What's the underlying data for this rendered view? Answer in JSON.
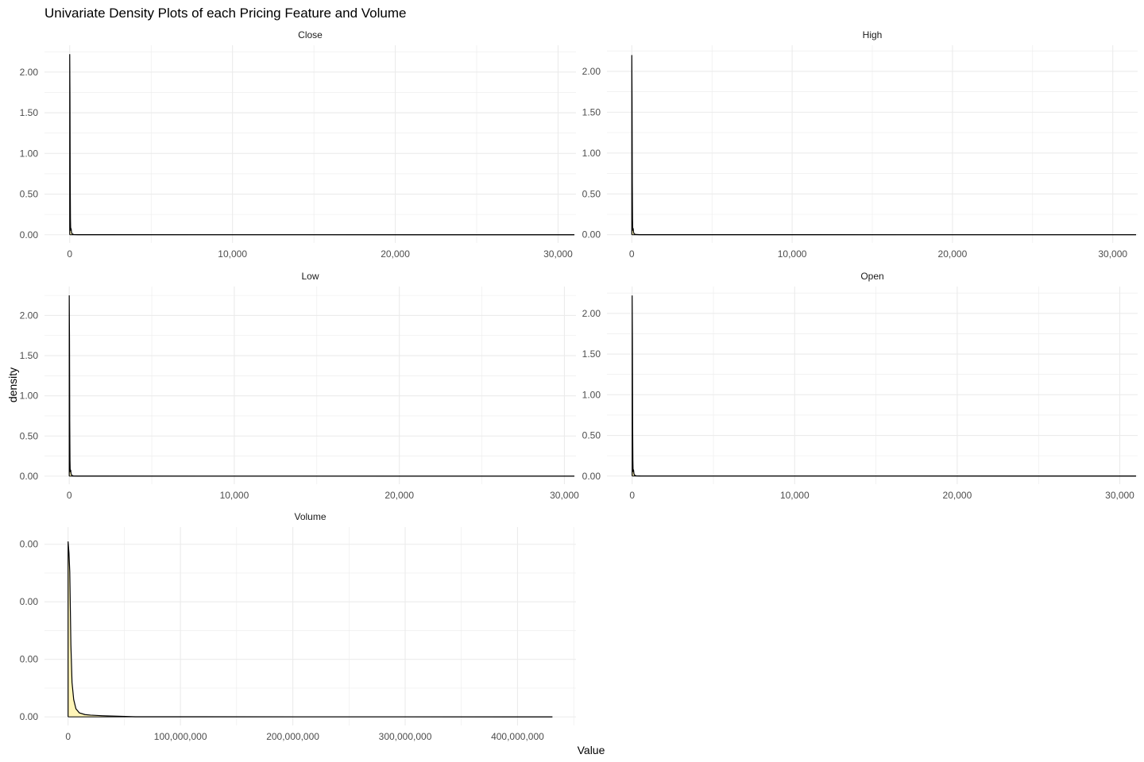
{
  "chart_data": {
    "type": "area",
    "title": "Univariate Density Plots of each Pricing Feature and Volume",
    "xlabel": "Value",
    "ylabel": "density",
    "grid": true,
    "fill_color": "#fff5b8",
    "line_color": "#000000",
    "grid_color": "#ebebeb",
    "panels": [
      {
        "name": "Close",
        "x_ticks": [
          0,
          10000,
          20000,
          30000
        ],
        "x_tick_labels": [
          "0",
          "10,000",
          "20,000",
          "30,000"
        ],
        "y_ticks": [
          0,
          0.5,
          1.0,
          1.5,
          2.0
        ],
        "y_tick_labels": [
          "0.00",
          "0.50",
          "1.00",
          "1.50",
          "2.00"
        ],
        "xlim": [
          -1550,
          31100
        ],
        "ylim": [
          -0.1,
          2.33
        ],
        "x_max": 31000,
        "x": [
          0,
          15,
          30,
          45,
          60,
          75,
          90,
          110,
          150,
          250,
          500,
          31000
        ],
        "y": [
          2.22,
          1.7,
          0.67,
          0.2,
          0.05,
          0.08,
          0.07,
          0.03,
          0.01,
          0.003,
          0.001,
          0.0
        ]
      },
      {
        "name": "High",
        "x_ticks": [
          0,
          10000,
          20000,
          30000
        ],
        "x_tick_labels": [
          "0",
          "10,000",
          "20,000",
          "30,000"
        ],
        "y_ticks": [
          0,
          0.5,
          1.0,
          1.5,
          2.0
        ],
        "y_tick_labels": [
          "0.00",
          "0.50",
          "1.00",
          "1.50",
          "2.00"
        ],
        "xlim": [
          -1550,
          31550
        ],
        "ylim": [
          -0.1,
          2.32
        ],
        "x_max": 31450,
        "x": [
          0,
          15,
          30,
          45,
          60,
          75,
          90,
          110,
          150,
          250,
          500,
          31450
        ],
        "y": [
          2.2,
          1.68,
          0.67,
          0.2,
          0.05,
          0.08,
          0.07,
          0.03,
          0.01,
          0.003,
          0.001,
          0.0
        ]
      },
      {
        "name": "Low",
        "x_ticks": [
          0,
          10000,
          20000,
          30000
        ],
        "x_tick_labels": [
          "0",
          "10,000",
          "20,000",
          "30,000"
        ],
        "y_ticks": [
          0,
          0.5,
          1.0,
          1.5,
          2.0
        ],
        "y_tick_labels": [
          "0.00",
          "0.50",
          "1.00",
          "1.50",
          "2.00"
        ],
        "xlim": [
          -1500,
          30700
        ],
        "ylim": [
          -0.1,
          2.36
        ],
        "x_max": 30600,
        "x": [
          0,
          15,
          30,
          45,
          60,
          75,
          90,
          110,
          150,
          250,
          500,
          30600
        ],
        "y": [
          2.25,
          1.72,
          0.68,
          0.2,
          0.05,
          0.08,
          0.07,
          0.03,
          0.01,
          0.003,
          0.001,
          0.0
        ]
      },
      {
        "name": "Open",
        "x_ticks": [
          0,
          10000,
          20000,
          30000
        ],
        "x_tick_labels": [
          "0",
          "10,000",
          "20,000",
          "30,000"
        ],
        "y_ticks": [
          0,
          0.5,
          1.0,
          1.5,
          2.0
        ],
        "y_tick_labels": [
          "0.00",
          "0.50",
          "1.00",
          "1.50",
          "2.00"
        ],
        "xlim": [
          -1550,
          31100
        ],
        "ylim": [
          -0.1,
          2.33
        ],
        "x_max": 31000,
        "x": [
          0,
          15,
          30,
          45,
          60,
          75,
          90,
          110,
          150,
          250,
          500,
          31000
        ],
        "y": [
          2.22,
          1.7,
          0.67,
          0.2,
          0.05,
          0.08,
          0.07,
          0.03,
          0.01,
          0.003,
          0.001,
          0.0
        ]
      },
      {
        "name": "Volume",
        "x_ticks": [
          0,
          100000000,
          200000000,
          300000000,
          400000000
        ],
        "x_tick_labels": [
          "0",
          "100,000,000",
          "200,000,000",
          "300,000,000",
          "400,000,000"
        ],
        "y_ticks": [
          0,
          1,
          2,
          3
        ],
        "y_tick_labels": [
          "0.00",
          "0.00",
          "0.00",
          "0.00"
        ],
        "xlim": [
          -21000000,
          452000000
        ],
        "ylim": [
          -0.15,
          3.3
        ],
        "x_max": 431000000,
        "x": [
          0,
          800000,
          1500000,
          2500000,
          3500000,
          5000000,
          7000000,
          10000000,
          15000000,
          20000000,
          30000000,
          45000000,
          60000000,
          431000000
        ],
        "y": [
          3.05,
          2.85,
          2.52,
          1.25,
          0.6,
          0.3,
          0.14,
          0.07,
          0.04,
          0.03,
          0.02,
          0.01,
          0.002,
          0.0
        ]
      }
    ]
  }
}
